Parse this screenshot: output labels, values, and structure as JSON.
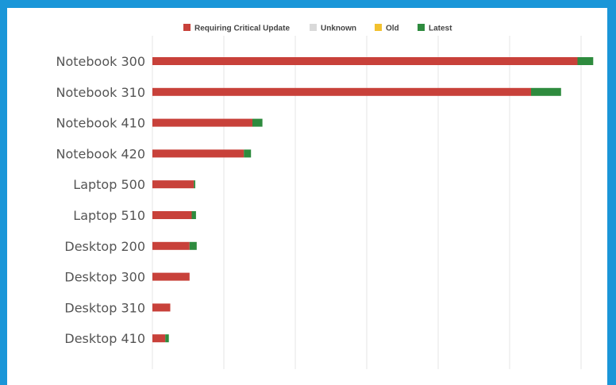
{
  "chart_data": {
    "type": "bar",
    "orientation": "horizontal",
    "stacked": true,
    "categories": [
      "Notebook 300",
      "Notebook 310",
      "Notebook 410",
      "Notebook 420",
      "Laptop 500",
      "Laptop 510",
      "Desktop 200",
      "Desktop 300",
      "Desktop 310",
      "Desktop 410"
    ],
    "series": [
      {
        "name": "Requiring Critical Update",
        "color": "#c8413a",
        "values": [
          595,
          530,
          140,
          128,
          58,
          55,
          52,
          52,
          25,
          18
        ]
      },
      {
        "name": "Unknown",
        "color": "#d9d9d9",
        "values": [
          0,
          0,
          0,
          0,
          0,
          0,
          0,
          0,
          0,
          0
        ]
      },
      {
        "name": "Old",
        "color": "#f2c12e",
        "values": [
          0,
          0,
          0,
          0,
          0,
          0,
          0,
          0,
          0,
          0
        ]
      },
      {
        "name": "Latest",
        "color": "#2e8b3e",
        "values": [
          22,
          42,
          14,
          10,
          2,
          6,
          10,
          0,
          0,
          5
        ]
      }
    ],
    "xlim": [
      0,
      630
    ],
    "grid": true,
    "legend": "top-center"
  }
}
